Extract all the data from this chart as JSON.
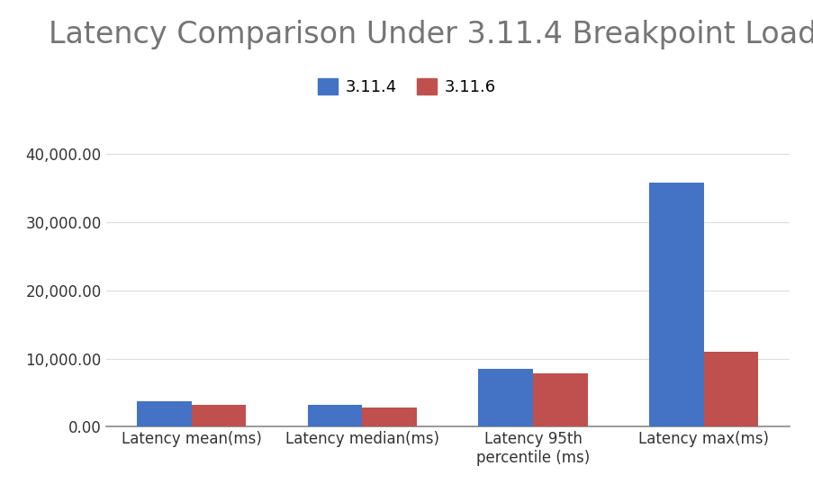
{
  "title": "Latency Comparison Under 3.11.4 Breakpoint Load",
  "categories": [
    "Latency mean(ms)",
    "Latency median(ms)",
    "Latency 95th\npercentile (ms)",
    "Latency max(ms)"
  ],
  "series": [
    {
      "label": "3.11.4",
      "color": "#4472C4",
      "values": [
        3800,
        3200,
        8500,
        35800
      ]
    },
    {
      "label": "3.11.6",
      "color": "#C0504D",
      "values": [
        3200,
        2800,
        7800,
        11000
      ]
    }
  ],
  "ylim": [
    0,
    42000
  ],
  "yticks": [
    0,
    10000,
    20000,
    30000,
    40000
  ],
  "background_color": "#ffffff",
  "title_fontsize": 24,
  "title_color": "#757575",
  "legend_fontsize": 13,
  "tick_fontsize": 12,
  "bar_width": 0.32,
  "grid_color": "#dddddd"
}
